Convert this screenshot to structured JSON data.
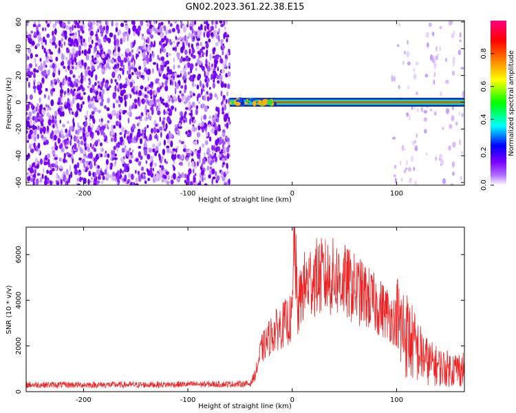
{
  "title": "GN02.2023.361.22.38.E15",
  "chart_data": [
    {
      "type": "heatmap",
      "panel": "top",
      "xlabel": "Height of straight line (km)",
      "ylabel": "Frequency (Hz)",
      "xlim": [
        -255,
        165
      ],
      "ylim": [
        -62,
        61
      ],
      "xticks": [
        -200,
        -100,
        0,
        100
      ],
      "yticks": [
        60,
        40,
        20,
        0,
        -20,
        -40,
        -60
      ],
      "grid": false,
      "regions": [
        {
          "name_hint": "dense broadband noise",
          "x": [
            -255,
            -60
          ],
          "y": [
            -62,
            61
          ],
          "density": 0.85
        },
        {
          "name_hint": "sparse noise",
          "x": [
            95,
            165
          ],
          "y": [
            -62,
            61
          ],
          "density": 0.12
        },
        {
          "name_hint": "narrowband line at 0 Hz",
          "x": [
            -60,
            165
          ],
          "y_center": 0,
          "y_halfwidth": 2.5
        }
      ],
      "colorbar": {
        "label": "Normalized spectral amplitude",
        "range": [
          0,
          1
        ],
        "ticks": [
          0.0,
          0.2,
          0.4,
          0.6,
          0.8
        ],
        "colors": [
          "#ffffff",
          "#7b00ff",
          "#0000ff",
          "#00ffff",
          "#00ff00",
          "#ffff00",
          "#ff8000",
          "#ff0000",
          "#ff0080"
        ]
      }
    },
    {
      "type": "line",
      "panel": "bottom",
      "xlabel": "Height of straight line (km)",
      "ylabel": "SNR (10 * v/v)",
      "xlim": [
        -255,
        165
      ],
      "ylim": [
        0,
        7200
      ],
      "xticks": [
        -200,
        -100,
        0,
        100
      ],
      "yticks": [
        0,
        2000,
        4000,
        6000
      ],
      "grid": false,
      "color": "#ee2222",
      "series": [
        {
          "x": [
            -255,
            -200,
            -150,
            -100,
            -60,
            -40,
            -35,
            -30,
            -20,
            -10,
            0,
            2,
            5,
            10,
            20,
            30,
            40,
            50,
            60,
            70,
            80,
            90,
            100,
            110,
            120,
            130,
            140,
            150,
            160,
            165
          ],
          "y": [
            300,
            300,
            300,
            320,
            330,
            350,
            800,
            1800,
            2500,
            2900,
            3200,
            7000,
            3500,
            4500,
            5000,
            5000,
            5000,
            4800,
            4500,
            4200,
            3800,
            3500,
            3000,
            2500,
            1800,
            1300,
            1100,
            1000,
            1000,
            1000
          ]
        }
      ]
    }
  ]
}
